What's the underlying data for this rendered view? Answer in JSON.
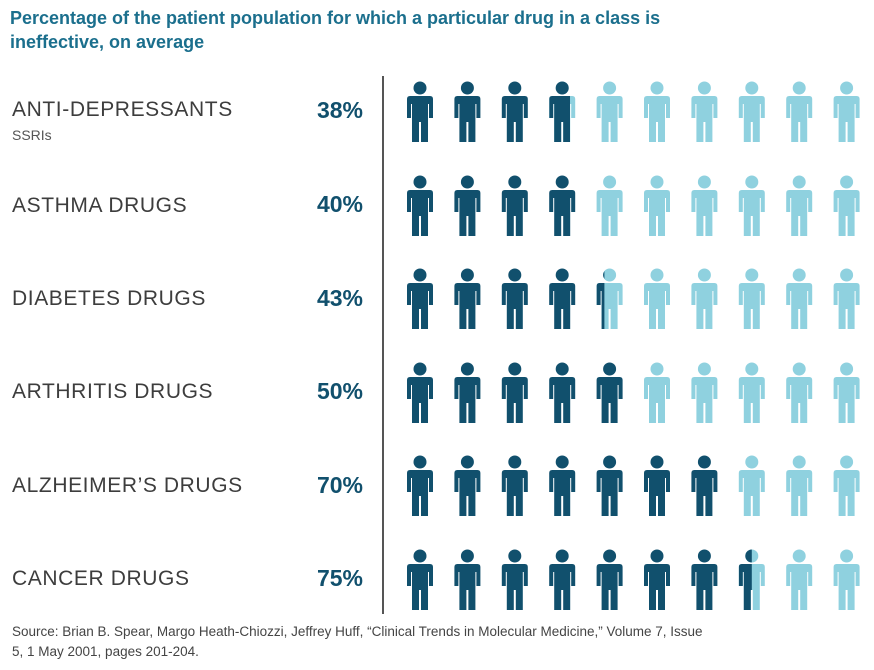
{
  "title": "Percentage of the patient population for which a particular drug in a class is ineffective, on average",
  "source": "Source: Brian B. Spear, Margo Heath-Chiozzi, Jeffrey Huff, “Clinical Trends in Molecular Medicine,” Volume 7, Issue 5, 1 May 2001, pages 201-204.",
  "colors": {
    "ineffective": "#11506d",
    "effective": "#8fd1df",
    "title": "#1b6f8d"
  },
  "chart_data": {
    "type": "pictogram",
    "title": "Percentage of the patient population for which a particular drug in a class is ineffective, on average",
    "icons_per_row": 10,
    "icon": "person-icon",
    "categories": [
      "ANTI-DEPRESSANTS",
      "ASTHMA DRUGS",
      "DIABETES DRUGS",
      "ARTHRITIS DRUGS",
      "ALZHEIMER’S DRUGS",
      "CANCER DRUGS"
    ],
    "subtitles": [
      "SSRIs",
      "",
      "",
      "",
      "",
      ""
    ],
    "values": [
      38,
      40,
      43,
      50,
      70,
      75
    ],
    "value_labels": [
      "38%",
      "40%",
      "43%",
      "50%",
      "70%",
      "75%"
    ]
  }
}
